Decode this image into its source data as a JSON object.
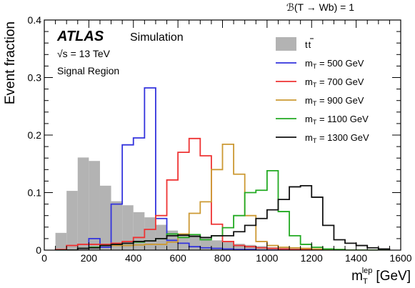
{
  "chart_data": {
    "type": "histogram",
    "title": "",
    "top_right_label": "ℬ(T → Wb) = 1",
    "experiment": "ATLAS",
    "experiment_subtitle": "Simulation",
    "energy_label": "√s = 13 TeV",
    "region_label": "Signal Region",
    "xlabel": "mₜˡᵉᵖ [GeV]",
    "xlabel_main": "m",
    "xlabel_sub": "T",
    "xlabel_sup": "lep",
    "xlabel_unit": "[GeV]",
    "ylabel": "Event fraction",
    "xlim": [
      0,
      1600
    ],
    "ylim": [
      0,
      0.4
    ],
    "xticks": [
      "0",
      "200",
      "400",
      "600",
      "800",
      "1000",
      "1200",
      "1400",
      "1600"
    ],
    "yticks": [
      "0",
      "0.1",
      "0.2",
      "0.3",
      "0.4"
    ],
    "legend_position": "top-right",
    "bin_edges": [
      50,
      100,
      150,
      200,
      250,
      300,
      350,
      400,
      450,
      500,
      550,
      600,
      650,
      700,
      750,
      800,
      850,
      900,
      950,
      1000,
      1050,
      1100,
      1150,
      1200,
      1250,
      1300,
      1350,
      1400,
      1450,
      1500,
      1550
    ],
    "series": [
      {
        "name": "t̄t",
        "legend_label": "t",
        "kind": "filled",
        "color": "#b3b3b3",
        "values": [
          0.03,
          0.103,
          0.161,
          0.155,
          0.112,
          0.085,
          0.078,
          0.066,
          0.057,
          0.044,
          0.034,
          0.028,
          0.026,
          0.021,
          0.017,
          0.014,
          0.011,
          0.009,
          0.007,
          0.005,
          0.004,
          0.003,
          0.002,
          0.0015,
          0.001,
          0.0008,
          0.0005,
          0.0003,
          0.0002,
          0.0001
        ]
      },
      {
        "name": "m_T = 500 GeV",
        "legend_label": "m",
        "legend_value": " = 500 GeV",
        "kind": "step",
        "color": "#3333dd",
        "values": [
          0,
          0,
          0.003,
          0.02,
          0.005,
          0.08,
          0.183,
          0.195,
          0.282,
          0.055,
          0.017,
          0.012,
          0.006,
          0.004,
          0.003,
          0.002,
          0.001,
          0.001,
          0,
          0,
          0,
          0,
          0,
          0,
          0,
          0,
          0,
          0,
          0,
          0
        ]
      },
      {
        "name": "m_T = 700 GeV",
        "legend_label": "m",
        "legend_value": " = 700 GeV",
        "kind": "step",
        "color": "#ee3333",
        "values": [
          0.001,
          0.008,
          0.01,
          0.01,
          0.01,
          0.012,
          0.015,
          0.022,
          0.036,
          0.06,
          0.122,
          0.17,
          0.194,
          0.164,
          0.045,
          0.015,
          0.008,
          0.006,
          0.004,
          0.003,
          0.002,
          0.001,
          0.001,
          0,
          0,
          0,
          0,
          0,
          0,
          0
        ]
      },
      {
        "name": "m_T = 900 GeV",
        "legend_label": "m",
        "legend_value": " = 900 GeV",
        "kind": "step",
        "color": "#cc9933",
        "values": [
          0,
          0,
          0.003,
          0.005,
          0.008,
          0.008,
          0.008,
          0.009,
          0.01,
          0.01,
          0.014,
          0.028,
          0.064,
          0.084,
          0.14,
          0.184,
          0.132,
          0.06,
          0.015,
          0.008,
          0.005,
          0.004,
          0.003,
          0.002,
          0.001,
          0.001,
          0,
          0,
          0,
          0
        ]
      },
      {
        "name": "m_T = 1100 GeV",
        "legend_label": "m",
        "legend_value": " = 1100 GeV",
        "kind": "step",
        "color": "#22aa22",
        "values": [
          0,
          0,
          0.003,
          0.005,
          0.008,
          0.01,
          0.012,
          0.014,
          0.016,
          0.02,
          0.028,
          0.022,
          0.027,
          0.018,
          0.025,
          0.039,
          0.06,
          0.1,
          0.104,
          0.138,
          0.067,
          0.025,
          0.01,
          0.005,
          0.002,
          0.001,
          0,
          0,
          0,
          0
        ]
      },
      {
        "name": "m_T = 1300 GeV",
        "legend_label": "m",
        "legend_value": " = 1300 GeV",
        "kind": "step",
        "color": "#111111",
        "values": [
          0,
          0,
          0.003,
          0.004,
          0.008,
          0.01,
          0.012,
          0.015,
          0.016,
          0.02,
          0.025,
          0.026,
          0.024,
          0.022,
          0.025,
          0.025,
          0.032,
          0.043,
          0.055,
          0.07,
          0.088,
          0.11,
          0.112,
          0.092,
          0.043,
          0.018,
          0.012,
          0.008,
          0.004,
          0.002
        ]
      }
    ]
  }
}
